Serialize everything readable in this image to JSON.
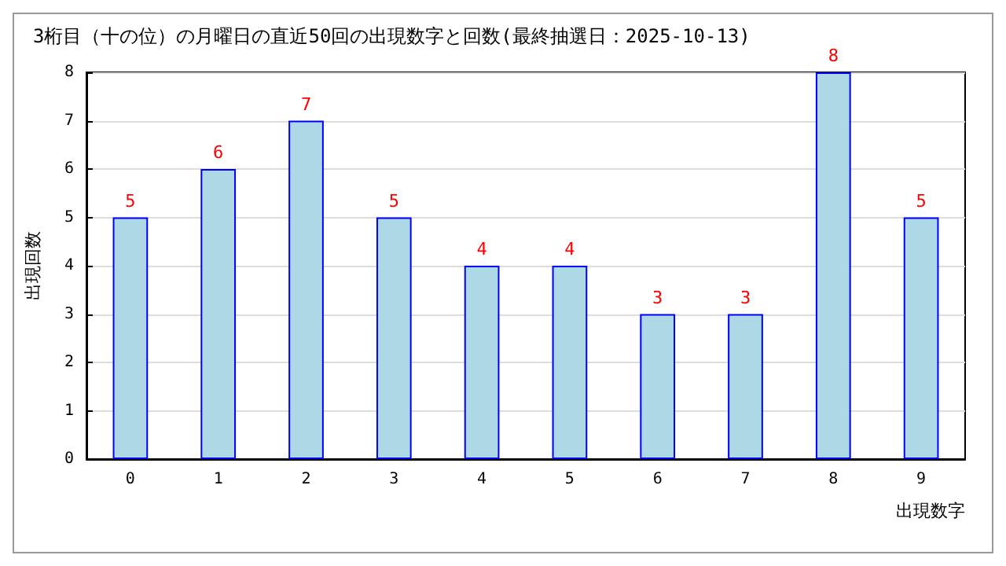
{
  "chart_data": {
    "type": "bar",
    "title": "3桁目（十の位）の月曜日の直近50回の出現数字と回数(最終抽選日：2025-10-13)",
    "xlabel": "出現数字",
    "ylabel": "出現回数",
    "categories": [
      "0",
      "1",
      "2",
      "3",
      "4",
      "5",
      "6",
      "7",
      "8",
      "9"
    ],
    "values": [
      5,
      6,
      7,
      5,
      4,
      4,
      3,
      3,
      8,
      5
    ],
    "color": "#add8e6",
    "data_labels": true,
    "ylim": [
      0,
      8
    ],
    "yticks": [
      0,
      1,
      2,
      3,
      4,
      5,
      6,
      7,
      8
    ],
    "grid": "y"
  }
}
